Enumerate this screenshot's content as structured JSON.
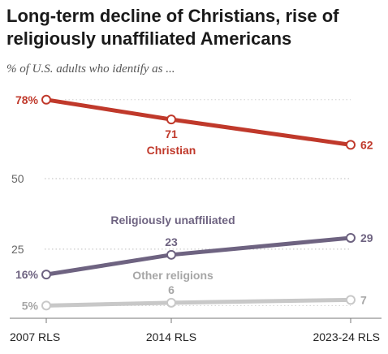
{
  "header": {
    "title": "Long-term decline of Christians, rise of religiously unaffiliated Americans",
    "subtitle": "% of U.S. adults who identify as ..."
  },
  "chart_data": {
    "type": "line",
    "title": "Long-term decline of Christians, rise of religiously unaffiliated Americans",
    "subtitle": "% of U.S. adults who identify as ...",
    "x": [
      "2007 RLS",
      "2014 RLS",
      "2023-24 RLS"
    ],
    "y_ticks": [
      25,
      50
    ],
    "grid": true,
    "series": [
      {
        "name": "Christian",
        "values": [
          78,
          71,
          62
        ],
        "labels": [
          "78%",
          "71",
          "62"
        ],
        "color": "#c0392b",
        "label_color": "#c0392b"
      },
      {
        "name": "Religiously unaffiliated",
        "values": [
          16,
          23,
          29
        ],
        "labels": [
          "16%",
          "23",
          "29"
        ],
        "color": "#6e6381",
        "label_color": "#6e6381"
      },
      {
        "name": "Other religions",
        "values": [
          5,
          6,
          7
        ],
        "labels": [
          "5%",
          "6",
          "7"
        ],
        "color": "#c8c8c8",
        "label_color": "#a6a6a6"
      }
    ]
  }
}
